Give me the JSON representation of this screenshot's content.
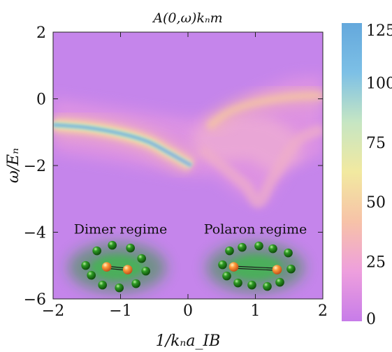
{
  "chart_data": {
    "type": "heatmap",
    "title": "A(0,ω)kₙm",
    "xlabel": "1/kₙa_IB",
    "ylabel": "ω/Eₙ",
    "xlim": [
      -2,
      2
    ],
    "ylim": [
      -6,
      2
    ],
    "x_ticks": [
      {
        "value": -2,
        "label": "−2"
      },
      {
        "value": -1,
        "label": "−1"
      },
      {
        "value": 0,
        "label": "0"
      },
      {
        "value": 1,
        "label": "1"
      },
      {
        "value": 2,
        "label": "2"
      }
    ],
    "y_ticks": [
      {
        "value": 2,
        "label": "2"
      },
      {
        "value": 0,
        "label": "0"
      },
      {
        "value": -2,
        "label": "−2"
      },
      {
        "value": -4,
        "label": "−4"
      },
      {
        "value": -6,
        "label": "−6"
      }
    ],
    "colorbar": {
      "range": [
        0,
        125
      ],
      "ticks": [
        {
          "value": 125,
          "label": "125"
        },
        {
          "value": 100,
          "label": "100"
        },
        {
          "value": 75,
          "label": "75"
        },
        {
          "value": 50,
          "label": "50"
        },
        {
          "value": 25,
          "label": "25"
        },
        {
          "value": 0,
          "label": "0"
        }
      ],
      "colors": [
        "#c77ce9",
        "#ee9fdd",
        "#f7c2a8",
        "#f2e9a0",
        "#c6e6c3",
        "#7dc0e6",
        "#64a8dc"
      ]
    },
    "features": {
      "attractive_branch": [
        [
          -2.0,
          -0.78
        ],
        [
          -1.5,
          -0.86
        ],
        [
          -1.0,
          -1.04
        ],
        [
          -0.6,
          -1.28
        ],
        [
          -0.3,
          -1.6
        ],
        [
          0.05,
          -2.0
        ]
      ],
      "repulsive_branch": [
        [
          0.3,
          -0.85
        ],
        [
          0.6,
          -0.4
        ],
        [
          1.0,
          -0.12
        ],
        [
          1.5,
          0.05
        ],
        [
          2.0,
          0.1
        ]
      ],
      "continuum_edge": [
        [
          0.2,
          -1.5
        ],
        [
          0.5,
          -2.0
        ],
        [
          0.85,
          -2.6
        ],
        [
          1.05,
          -3.1
        ],
        [
          1.25,
          -2.4
        ],
        [
          1.6,
          -1.3
        ],
        [
          2.0,
          -0.9
        ]
      ]
    },
    "annotations": [
      {
        "text": "Dimer regime",
        "x": -1.0,
        "y": -3.9
      },
      {
        "text": "Polaron regime",
        "x": 1.0,
        "y": -3.9
      }
    ],
    "grid": false,
    "legend": "colorbar-right"
  }
}
